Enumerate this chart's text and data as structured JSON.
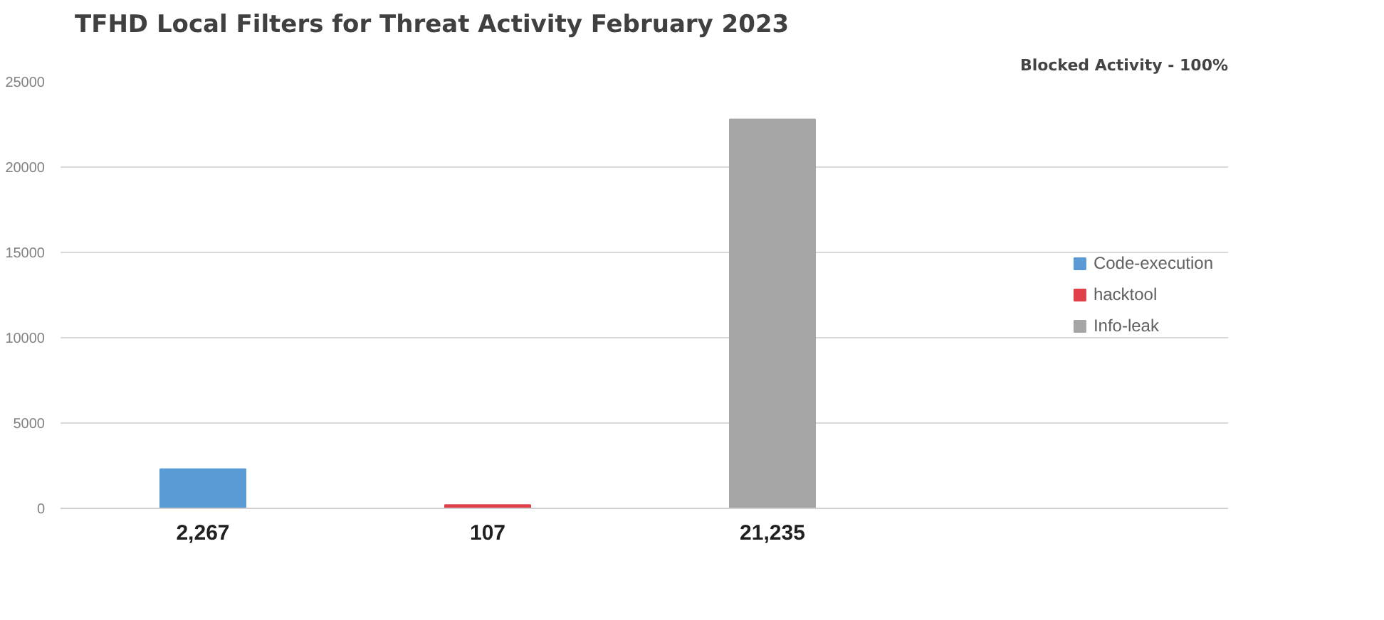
{
  "chart_data": {
    "type": "bar",
    "title": "TFHD Local Filters for Threat Activity February 2023",
    "categories": [
      "2,267",
      "107",
      "21,235"
    ],
    "series": [
      {
        "name": "Code-execution",
        "color": "#5b9bd5",
        "values": [
          2300,
          null,
          null
        ]
      },
      {
        "name": "hacktool",
        "color": "#e0404a",
        "values": [
          null,
          200,
          null
        ]
      },
      {
        "name": "Info-leak",
        "color": "#a5a5a5",
        "values": [
          null,
          null,
          22800
        ]
      }
    ],
    "ylim": [
      0,
      25000
    ],
    "yticks": [
      0,
      5000,
      10000,
      15000,
      20000,
      25000
    ],
    "grid": "y",
    "legend": "right",
    "annotations": [
      "Blocked Activity - 100%"
    ]
  }
}
